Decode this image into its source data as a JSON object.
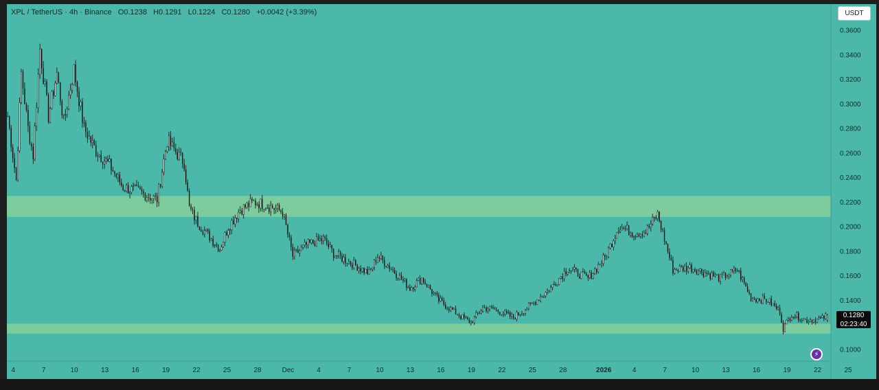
{
  "legend": {
    "symbol": "XPL / TetherUS · 4h · Binance",
    "open": "O0.1238",
    "high": "H0.1291",
    "low": "L0.1224",
    "close": "C0.1280",
    "change": "+0.0042 (+3.39%)"
  },
  "unit_button": "USDT",
  "price_tag": {
    "price": "0.1280",
    "countdown": "02:23:40"
  },
  "icons": {
    "lightning": "lightning-icon"
  },
  "colors": {
    "background": "#4cb8aa",
    "zone": "#7ecb9e",
    "candle": "#0a0a0a"
  },
  "chart_data": {
    "type": "candlestick",
    "title": "",
    "xlabel": "",
    "ylabel": "",
    "ylim": [
      0.09,
      0.37
    ],
    "y_ticks": [
      "0.3600",
      "0.3400",
      "0.3200",
      "0.3000",
      "0.2800",
      "0.2600",
      "0.2400",
      "0.2200",
      "0.2000",
      "0.1800",
      "0.1600",
      "0.1400",
      "0.1200",
      "0.1000"
    ],
    "x_ticks": [
      {
        "label": "4",
        "i": 0
      },
      {
        "label": "7",
        "i": 18
      },
      {
        "label": "10",
        "i": 36
      },
      {
        "label": "13",
        "i": 54
      },
      {
        "label": "16",
        "i": 72
      },
      {
        "label": "19",
        "i": 90
      },
      {
        "label": "22",
        "i": 108
      },
      {
        "label": "25",
        "i": 126
      },
      {
        "label": "28",
        "i": 144
      },
      {
        "label": "Dec",
        "i": 162
      },
      {
        "label": "4",
        "i": 180
      },
      {
        "label": "7",
        "i": 198
      },
      {
        "label": "10",
        "i": 216
      },
      {
        "label": "13",
        "i": 234
      },
      {
        "label": "16",
        "i": 252
      },
      {
        "label": "19",
        "i": 270
      },
      {
        "label": "22",
        "i": 288
      },
      {
        "label": "25",
        "i": 306
      },
      {
        "label": "28",
        "i": 324
      },
      {
        "label": "2026",
        "i": 348
      },
      {
        "label": "4",
        "i": 366
      },
      {
        "label": "7",
        "i": 384
      },
      {
        "label": "10",
        "i": 402
      },
      {
        "label": "13",
        "i": 420
      },
      {
        "label": "16",
        "i": 438
      },
      {
        "label": "19",
        "i": 456
      },
      {
        "label": "22",
        "i": 474
      },
      {
        "label": "25",
        "i": 492
      }
    ],
    "zones": [
      {
        "from": 0.208,
        "to": 0.225
      },
      {
        "from": 0.113,
        "to": 0.121
      }
    ],
    "anchors": [
      [
        0,
        0.29
      ],
      [
        5,
        0.238
      ],
      [
        8,
        0.325
      ],
      [
        12,
        0.28
      ],
      [
        15,
        0.258
      ],
      [
        19,
        0.345
      ],
      [
        24,
        0.29
      ],
      [
        29,
        0.325
      ],
      [
        33,
        0.285
      ],
      [
        39,
        0.328
      ],
      [
        45,
        0.28
      ],
      [
        52,
        0.262
      ],
      [
        60,
        0.25
      ],
      [
        68,
        0.232
      ],
      [
        78,
        0.228
      ],
      [
        88,
        0.222
      ],
      [
        94,
        0.27
      ],
      [
        104,
        0.252
      ],
      [
        107,
        0.215
      ],
      [
        112,
        0.203
      ],
      [
        125,
        0.182
      ],
      [
        130,
        0.2
      ],
      [
        137,
        0.214
      ],
      [
        145,
        0.22
      ],
      [
        152,
        0.218
      ],
      [
        162,
        0.212
      ],
      [
        168,
        0.176
      ],
      [
        176,
        0.185
      ],
      [
        186,
        0.19
      ],
      [
        192,
        0.178
      ],
      [
        203,
        0.17
      ],
      [
        213,
        0.162
      ],
      [
        218,
        0.176
      ],
      [
        226,
        0.166
      ],
      [
        237,
        0.15
      ],
      [
        244,
        0.158
      ],
      [
        254,
        0.14
      ],
      [
        268,
        0.126
      ],
      [
        273,
        0.122
      ],
      [
        280,
        0.134
      ],
      [
        286,
        0.133
      ],
      [
        298,
        0.126
      ],
      [
        308,
        0.136
      ],
      [
        320,
        0.15
      ],
      [
        330,
        0.166
      ],
      [
        342,
        0.158
      ],
      [
        352,
        0.175
      ],
      [
        360,
        0.2
      ],
      [
        369,
        0.195
      ],
      [
        376,
        0.196
      ],
      [
        383,
        0.21
      ],
      [
        392,
        0.165
      ],
      [
        402,
        0.167
      ],
      [
        412,
        0.162
      ],
      [
        420,
        0.158
      ],
      [
        430,
        0.165
      ],
      [
        438,
        0.142
      ],
      [
        448,
        0.14
      ],
      [
        455,
        0.131
      ],
      [
        457,
        0.117
      ],
      [
        462,
        0.129
      ],
      [
        470,
        0.124
      ],
      [
        480,
        0.125
      ],
      [
        483,
        0.128
      ]
    ],
    "last": {
      "open": 0.1238,
      "high": 0.1291,
      "low": 0.1224,
      "close": 0.128
    },
    "count": 484
  }
}
